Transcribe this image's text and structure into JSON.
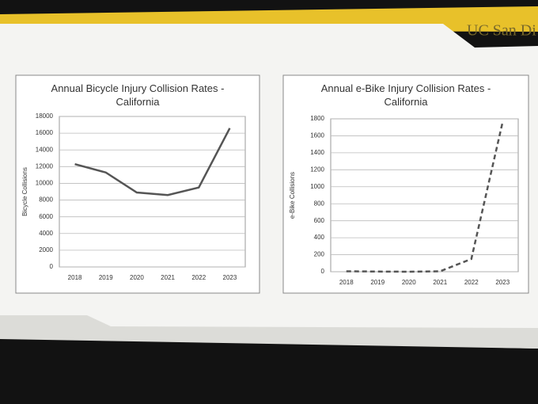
{
  "logo": "UC San Di",
  "chart_data": [
    {
      "type": "line",
      "title": "Annual Bicycle Injury Collision Rates - California",
      "y_label": "Bicycle Collisions",
      "categories": [
        "2018",
        "2019",
        "2020",
        "2021",
        "2022",
        "2023"
      ],
      "values": [
        12300,
        11300,
        8900,
        8600,
        9500,
        16600
      ],
      "color": "#555555",
      "line_style": "solid",
      "ylim": [
        0,
        18000
      ],
      "yticks": [
        0,
        2000,
        4000,
        6000,
        8000,
        10000,
        12000,
        14000,
        16000,
        18000
      ],
      "grid": true
    },
    {
      "type": "line",
      "title": "Annual e-Bike Injury Collision Rates - California",
      "y_label": "e-Bike Collisions",
      "categories": [
        "2018",
        "2019",
        "2020",
        "2021",
        "2022",
        "2023"
      ],
      "values": [
        5,
        2,
        0,
        5,
        150,
        1760
      ],
      "color": "#555555",
      "line_style": "dashed",
      "ylim": [
        0,
        1800
      ],
      "yticks": [
        0,
        200,
        400,
        600,
        800,
        1000,
        1200,
        1400,
        1600,
        1800
      ],
      "grid": true
    }
  ]
}
